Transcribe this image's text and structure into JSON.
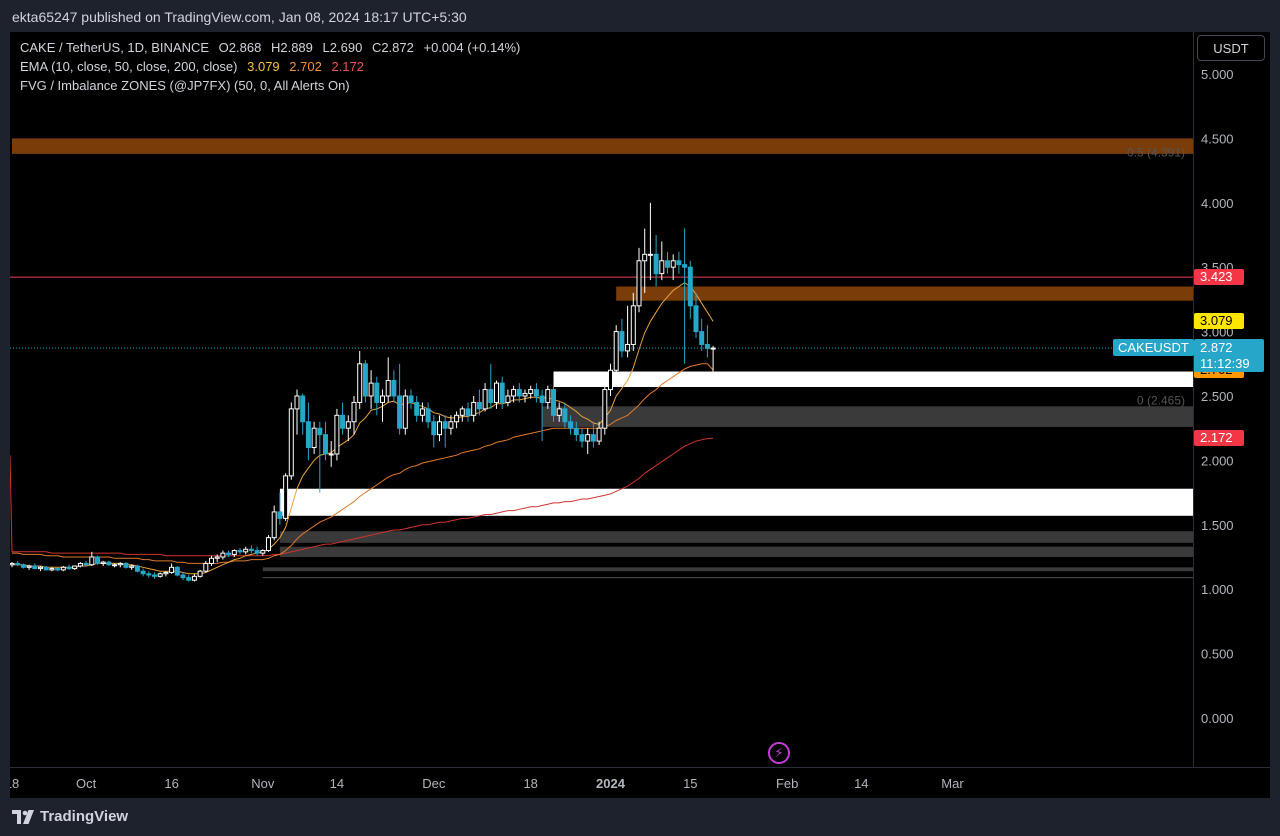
{
  "publish_info": "ekta65247 published on TradingView.com, Jan 08, 2024 18:17 UTC+5:30",
  "brand": "TradingView",
  "currency_button": "USDT",
  "legend": {
    "symbol": "CAKE / TetherUS, 1D, BINANCE",
    "ohlc": [
      {
        "k": "O",
        "v": "2.868"
      },
      {
        "k": "H",
        "v": "2.889"
      },
      {
        "k": "L",
        "v": "2.690"
      },
      {
        "k": "C",
        "v": "2.872"
      }
    ],
    "change": "+0.004 (+0.14%)",
    "ema_label": "EMA (10, close, 50, close, 200, close)",
    "ema_values": [
      "3.079",
      "2.702",
      "2.172"
    ],
    "fvg_label": "FVG / Imbalance ZONES (@JP7FX) (50, 0, All Alerts On)"
  },
  "price_tags": {
    "resistance": "3.423",
    "ema10": "3.079",
    "ema50": "2.702",
    "ema200": "2.172",
    "symbol": "CAKEUSDT",
    "last_price": "2.872",
    "countdown": "11:12:39"
  },
  "fib_labels": [
    "0.5 (4.391)",
    "0 (2.465)"
  ],
  "colors": {
    "bull": "#ffffff",
    "bear": "#26a6c8",
    "ema10": "#e8a33a",
    "ema50": "#e07a2c",
    "ema200": "#d0342c",
    "resistance": "#f04050",
    "zone_orange": "#7a3d0a",
    "zone_white": "#ffffff",
    "zone_gray": "#3a3a3a",
    "tag_yellow": "#ffe600",
    "tag_orange": "#ff9800",
    "tag_red": "#f23645"
  },
  "chart_data": {
    "type": "candlestick",
    "title": "CAKE / TetherUS, 1D, BINANCE",
    "y_ticks": [
      0,
      0.5,
      1.0,
      1.5,
      2.0,
      2.5,
      3.0,
      3.5,
      4.0,
      4.5,
      5.0
    ],
    "y_tick_labels": [
      "0.000",
      "0.500",
      "1.000",
      "1.500",
      "2.000",
      "2.500",
      "3.000",
      "3.500",
      "4.000",
      "4.500",
      "5.000"
    ],
    "ylim": [
      -0.15,
      5.1
    ],
    "x_labels": [
      {
        "label": "18",
        "date": "2023-09-18",
        "bold": false
      },
      {
        "label": "Oct",
        "date": "2023-10-01",
        "bold": false
      },
      {
        "label": "16",
        "date": "2023-10-16",
        "bold": false
      },
      {
        "label": "Nov",
        "date": "2023-11-01",
        "bold": false
      },
      {
        "label": "14",
        "date": "2023-11-14",
        "bold": false
      },
      {
        "label": "Dec",
        "date": "2023-12-01",
        "bold": false
      },
      {
        "label": "18",
        "date": "2023-12-18",
        "bold": false
      },
      {
        "label": "2024",
        "date": "2024-01-01",
        "bold": true
      },
      {
        "label": "15",
        "date": "2024-01-15",
        "bold": false
      },
      {
        "label": "Feb",
        "date": "2024-02-01",
        "bold": false
      },
      {
        "label": "14",
        "date": "2024-02-14",
        "bold": false
      },
      {
        "label": "Mar",
        "date": "2024-03-01",
        "bold": false
      }
    ],
    "xlim": [
      "2023-09-18",
      "2024-03-10"
    ],
    "start_date": "2023-09-18",
    "ohlc": [
      [
        1.19,
        1.21,
        1.17,
        1.2
      ],
      [
        1.2,
        1.22,
        1.18,
        1.19
      ],
      [
        1.19,
        1.2,
        1.16,
        1.17
      ],
      [
        1.17,
        1.19,
        1.15,
        1.18
      ],
      [
        1.18,
        1.2,
        1.16,
        1.16
      ],
      [
        1.16,
        1.18,
        1.14,
        1.17
      ],
      [
        1.17,
        1.18,
        1.15,
        1.15
      ],
      [
        1.15,
        1.17,
        1.14,
        1.16
      ],
      [
        1.16,
        1.17,
        1.14,
        1.15
      ],
      [
        1.15,
        1.18,
        1.14,
        1.17
      ],
      [
        1.17,
        1.19,
        1.15,
        1.16
      ],
      [
        1.16,
        1.18,
        1.15,
        1.18
      ],
      [
        1.18,
        1.21,
        1.17,
        1.2
      ],
      [
        1.2,
        1.22,
        1.18,
        1.19
      ],
      [
        1.19,
        1.29,
        1.18,
        1.25
      ],
      [
        1.25,
        1.26,
        1.19,
        1.2
      ],
      [
        1.2,
        1.22,
        1.18,
        1.21
      ],
      [
        1.21,
        1.22,
        1.18,
        1.19
      ],
      [
        1.19,
        1.2,
        1.17,
        1.19
      ],
      [
        1.19,
        1.21,
        1.17,
        1.2
      ],
      [
        1.2,
        1.21,
        1.16,
        1.17
      ],
      [
        1.17,
        1.19,
        1.15,
        1.18
      ],
      [
        1.18,
        1.19,
        1.13,
        1.14
      ],
      [
        1.14,
        1.16,
        1.1,
        1.12
      ],
      [
        1.12,
        1.14,
        1.09,
        1.11
      ],
      [
        1.11,
        1.13,
        1.08,
        1.1
      ],
      [
        1.1,
        1.13,
        1.09,
        1.12
      ],
      [
        1.12,
        1.14,
        1.1,
        1.13
      ],
      [
        1.13,
        1.2,
        1.12,
        1.17
      ],
      [
        1.17,
        1.18,
        1.1,
        1.11
      ],
      [
        1.11,
        1.13,
        1.07,
        1.09
      ],
      [
        1.09,
        1.11,
        1.06,
        1.07
      ],
      [
        1.07,
        1.12,
        1.06,
        1.1
      ],
      [
        1.1,
        1.15,
        1.09,
        1.14
      ],
      [
        1.14,
        1.22,
        1.13,
        1.2
      ],
      [
        1.2,
        1.26,
        1.18,
        1.24
      ],
      [
        1.24,
        1.27,
        1.21,
        1.25
      ],
      [
        1.25,
        1.3,
        1.23,
        1.28
      ],
      [
        1.28,
        1.3,
        1.25,
        1.27
      ],
      [
        1.27,
        1.31,
        1.25,
        1.3
      ],
      [
        1.3,
        1.32,
        1.27,
        1.29
      ],
      [
        1.29,
        1.33,
        1.27,
        1.31
      ],
      [
        1.31,
        1.34,
        1.28,
        1.3
      ],
      [
        1.3,
        1.33,
        1.26,
        1.28
      ],
      [
        1.28,
        1.31,
        1.26,
        1.3
      ],
      [
        1.3,
        1.42,
        1.29,
        1.4
      ],
      [
        1.4,
        1.65,
        1.38,
        1.6
      ],
      [
        1.6,
        1.75,
        1.5,
        1.55
      ],
      [
        1.55,
        1.9,
        1.53,
        1.88
      ],
      [
        1.88,
        2.45,
        1.85,
        2.4
      ],
      [
        2.4,
        2.55,
        2.2,
        2.5
      ],
      [
        2.5,
        2.52,
        2.2,
        2.3
      ],
      [
        2.3,
        2.45,
        2.0,
        2.1
      ],
      [
        2.1,
        2.3,
        2.05,
        2.25
      ],
      [
        2.25,
        2.3,
        1.75,
        2.2
      ],
      [
        2.2,
        2.3,
        2.0,
        2.05
      ],
      [
        2.05,
        2.15,
        1.95,
        2.05
      ],
      [
        2.05,
        2.4,
        2.0,
        2.35
      ],
      [
        2.35,
        2.45,
        2.2,
        2.25
      ],
      [
        2.25,
        2.35,
        2.15,
        2.3
      ],
      [
        2.3,
        2.5,
        2.2,
        2.45
      ],
      [
        2.45,
        2.85,
        2.4,
        2.75
      ],
      [
        2.75,
        2.78,
        2.45,
        2.5
      ],
      [
        2.5,
        2.7,
        2.4,
        2.6
      ],
      [
        2.6,
        2.65,
        2.35,
        2.45
      ],
      [
        2.45,
        2.55,
        2.3,
        2.5
      ],
      [
        2.5,
        2.8,
        2.45,
        2.62
      ],
      [
        2.62,
        2.7,
        2.45,
        2.5
      ],
      [
        2.5,
        2.75,
        2.2,
        2.25
      ],
      [
        2.25,
        2.55,
        2.2,
        2.5
      ],
      [
        2.5,
        2.55,
        2.4,
        2.45
      ],
      [
        2.45,
        2.5,
        2.3,
        2.35
      ],
      [
        2.35,
        2.45,
        2.3,
        2.4
      ],
      [
        2.4,
        2.45,
        2.25,
        2.3
      ],
      [
        2.3,
        2.35,
        2.1,
        2.2
      ],
      [
        2.2,
        2.35,
        2.15,
        2.3
      ],
      [
        2.3,
        2.35,
        2.1,
        2.25
      ],
      [
        2.25,
        2.35,
        2.2,
        2.3
      ],
      [
        2.3,
        2.38,
        2.25,
        2.35
      ],
      [
        2.35,
        2.42,
        2.3,
        2.4
      ],
      [
        2.4,
        2.45,
        2.3,
        2.35
      ],
      [
        2.35,
        2.5,
        2.3,
        2.45
      ],
      [
        2.45,
        2.55,
        2.35,
        2.4
      ],
      [
        2.4,
        2.6,
        2.38,
        2.55
      ],
      [
        2.55,
        2.75,
        2.4,
        2.45
      ],
      [
        2.45,
        2.62,
        2.4,
        2.6
      ],
      [
        2.6,
        2.65,
        2.4,
        2.45
      ],
      [
        2.45,
        2.55,
        2.42,
        2.5
      ],
      [
        2.5,
        2.58,
        2.45,
        2.55
      ],
      [
        2.55,
        2.6,
        2.45,
        2.5
      ],
      [
        2.5,
        2.55,
        2.45,
        2.52
      ],
      [
        2.52,
        2.58,
        2.48,
        2.55
      ],
      [
        2.55,
        2.6,
        2.45,
        2.5
      ],
      [
        2.5,
        2.55,
        2.15,
        2.45
      ],
      [
        2.45,
        2.58,
        2.4,
        2.55
      ],
      [
        2.55,
        2.6,
        2.3,
        2.35
      ],
      [
        2.35,
        2.45,
        2.3,
        2.4
      ],
      [
        2.4,
        2.45,
        2.25,
        2.3
      ],
      [
        2.3,
        2.35,
        2.2,
        2.25
      ],
      [
        2.25,
        2.3,
        2.15,
        2.2
      ],
      [
        2.2,
        2.25,
        2.1,
        2.15
      ],
      [
        2.15,
        2.25,
        2.05,
        2.2
      ],
      [
        2.2,
        2.3,
        2.1,
        2.15
      ],
      [
        2.15,
        2.3,
        2.12,
        2.25
      ],
      [
        2.25,
        2.6,
        2.2,
        2.55
      ],
      [
        2.55,
        2.75,
        2.5,
        2.7
      ],
      [
        2.7,
        3.05,
        2.65,
        3.0
      ],
      [
        3.0,
        3.1,
        2.8,
        2.85
      ],
      [
        2.85,
        3.2,
        2.8,
        2.9
      ],
      [
        2.9,
        3.3,
        2.85,
        3.2
      ],
      [
        3.2,
        3.65,
        3.15,
        3.55
      ],
      [
        3.55,
        3.8,
        3.3,
        3.6
      ],
      [
        3.6,
        4.0,
        3.4,
        3.6
      ],
      [
        3.6,
        3.75,
        3.35,
        3.45
      ],
      [
        3.45,
        3.7,
        3.4,
        3.55
      ],
      [
        3.55,
        3.62,
        3.45,
        3.5
      ],
      [
        3.5,
        3.6,
        3.4,
        3.55
      ],
      [
        3.55,
        3.62,
        3.45,
        3.52
      ],
      [
        3.52,
        3.8,
        2.75,
        3.5
      ],
      [
        3.5,
        3.55,
        3.1,
        3.2
      ],
      [
        3.2,
        3.3,
        2.95,
        3.0
      ],
      [
        3.0,
        3.1,
        2.85,
        2.9
      ],
      [
        2.9,
        3.05,
        2.8,
        2.87
      ],
      [
        2.868,
        2.889,
        2.69,
        2.872
      ]
    ],
    "ema10_values": [
      1.19,
      1.19,
      1.19,
      1.18,
      1.18,
      1.18,
      1.17,
      1.17,
      1.17,
      1.17,
      1.17,
      1.17,
      1.18,
      1.18,
      1.19,
      1.2,
      1.2,
      1.2,
      1.2,
      1.2,
      1.19,
      1.19,
      1.18,
      1.17,
      1.16,
      1.15,
      1.14,
      1.14,
      1.14,
      1.14,
      1.13,
      1.12,
      1.12,
      1.12,
      1.13,
      1.15,
      1.17,
      1.19,
      1.21,
      1.23,
      1.24,
      1.26,
      1.27,
      1.28,
      1.29,
      1.31,
      1.35,
      1.4,
      1.48,
      1.63,
      1.78,
      1.88,
      1.94,
      2.0,
      2.04,
      2.05,
      2.06,
      2.1,
      2.13,
      2.16,
      2.2,
      2.29,
      2.33,
      2.39,
      2.4,
      2.42,
      2.45,
      2.46,
      2.43,
      2.44,
      2.45,
      2.43,
      2.42,
      2.4,
      2.37,
      2.36,
      2.34,
      2.33,
      2.33,
      2.34,
      2.34,
      2.36,
      2.37,
      2.4,
      2.41,
      2.44,
      2.44,
      2.45,
      2.47,
      2.47,
      2.48,
      2.49,
      2.49,
      2.48,
      2.49,
      2.47,
      2.46,
      2.44,
      2.41,
      2.38,
      2.34,
      2.32,
      2.29,
      2.28,
      2.33,
      2.39,
      2.5,
      2.56,
      2.62,
      2.72,
      2.86,
      2.99,
      3.08,
      3.15,
      3.22,
      3.27,
      3.32,
      3.35,
      3.38,
      3.35,
      3.29,
      3.22,
      3.15,
      3.079
    ],
    "ema50_values": [
      1.28,
      1.28,
      1.27,
      1.27,
      1.27,
      1.27,
      1.26,
      1.26,
      1.26,
      1.25,
      1.25,
      1.25,
      1.25,
      1.25,
      1.25,
      1.25,
      1.25,
      1.25,
      1.24,
      1.24,
      1.24,
      1.24,
      1.24,
      1.23,
      1.23,
      1.22,
      1.22,
      1.22,
      1.22,
      1.21,
      1.21,
      1.2,
      1.2,
      1.2,
      1.2,
      1.2,
      1.2,
      1.21,
      1.21,
      1.22,
      1.22,
      1.22,
      1.23,
      1.23,
      1.23,
      1.24,
      1.26,
      1.27,
      1.3,
      1.34,
      1.39,
      1.43,
      1.46,
      1.49,
      1.52,
      1.54,
      1.56,
      1.59,
      1.62,
      1.65,
      1.68,
      1.72,
      1.75,
      1.78,
      1.81,
      1.84,
      1.87,
      1.89,
      1.9,
      1.93,
      1.95,
      1.96,
      1.98,
      1.99,
      2.0,
      2.01,
      2.02,
      2.03,
      2.04,
      2.06,
      2.07,
      2.08,
      2.09,
      2.11,
      2.12,
      2.14,
      2.15,
      2.16,
      2.18,
      2.19,
      2.2,
      2.21,
      2.22,
      2.23,
      2.24,
      2.25,
      2.25,
      2.25,
      2.25,
      2.25,
      2.25,
      2.25,
      2.25,
      2.25,
      2.26,
      2.28,
      2.31,
      2.33,
      2.35,
      2.39,
      2.43,
      2.48,
      2.52,
      2.55,
      2.59,
      2.62,
      2.65,
      2.68,
      2.71,
      2.73,
      2.74,
      2.75,
      2.75,
      2.702
    ],
    "ema200_values": [
      1.29,
      1.29,
      1.29,
      1.29,
      1.29,
      1.29,
      1.29,
      1.28,
      1.28,
      1.28,
      1.28,
      1.28,
      1.28,
      1.28,
      1.28,
      1.28,
      1.28,
      1.28,
      1.28,
      1.28,
      1.27,
      1.27,
      1.27,
      1.27,
      1.27,
      1.27,
      1.27,
      1.26,
      1.26,
      1.26,
      1.26,
      1.26,
      1.26,
      1.26,
      1.26,
      1.26,
      1.26,
      1.26,
      1.26,
      1.26,
      1.26,
      1.26,
      1.26,
      1.26,
      1.26,
      1.26,
      1.27,
      1.27,
      1.28,
      1.29,
      1.3,
      1.31,
      1.32,
      1.33,
      1.34,
      1.35,
      1.35,
      1.36,
      1.37,
      1.38,
      1.39,
      1.4,
      1.41,
      1.42,
      1.43,
      1.44,
      1.45,
      1.46,
      1.46,
      1.47,
      1.48,
      1.49,
      1.5,
      1.5,
      1.51,
      1.52,
      1.52,
      1.53,
      1.54,
      1.55,
      1.55,
      1.56,
      1.57,
      1.58,
      1.58,
      1.59,
      1.6,
      1.61,
      1.61,
      1.62,
      1.63,
      1.64,
      1.64,
      1.65,
      1.66,
      1.67,
      1.67,
      1.68,
      1.68,
      1.69,
      1.7,
      1.7,
      1.71,
      1.72,
      1.73,
      1.74,
      1.76,
      1.78,
      1.8,
      1.83,
      1.86,
      1.9,
      1.93,
      1.96,
      1.99,
      2.02,
      2.05,
      2.08,
      2.11,
      2.13,
      2.15,
      2.16,
      2.17,
      2.172
    ],
    "ema200_pre_start": 2.04,
    "resistance_level": 3.423,
    "last_price": 2.872,
    "zones": [
      {
        "kind": "orange",
        "top": 4.5,
        "bottom": 4.38,
        "from": "2023-09-18"
      },
      {
        "kind": "orange",
        "top": 3.35,
        "bottom": 3.24,
        "from": "2024-01-02"
      },
      {
        "kind": "white",
        "top": 2.69,
        "bottom": 2.57,
        "from": "2023-12-22"
      },
      {
        "kind": "gray",
        "top": 2.42,
        "bottom": 2.26,
        "from": "2023-12-20"
      },
      {
        "kind": "white",
        "top": 1.78,
        "bottom": 1.57,
        "from": "2023-11-04"
      },
      {
        "kind": "gray",
        "top": 1.45,
        "bottom": 1.36,
        "from": "2023-11-04"
      },
      {
        "kind": "gray",
        "top": 1.33,
        "bottom": 1.25,
        "from": "2023-11-04"
      },
      {
        "kind": "gray",
        "top": 1.17,
        "bottom": 1.14,
        "from": "2023-11-01"
      },
      {
        "kind": "line",
        "top": 1.09,
        "bottom": 1.09,
        "from": "2023-11-01"
      }
    ],
    "fib_levels": [
      4.391,
      2.465
    ]
  }
}
